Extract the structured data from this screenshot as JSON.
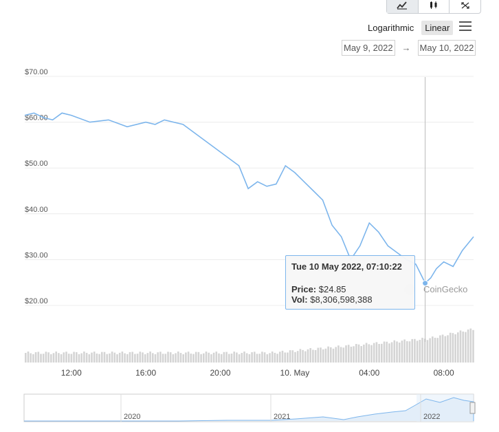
{
  "toolbar": {
    "items": [
      {
        "icon": "line-chart-icon",
        "active": true
      },
      {
        "icon": "candlestick-icon",
        "active": false
      },
      {
        "icon": "expand-icon",
        "active": false
      }
    ]
  },
  "scale": {
    "logarithmic_label": "Logarithmic",
    "linear_label": "Linear",
    "active": "Linear"
  },
  "range": {
    "from": "May 9, 2022",
    "arrow": "→",
    "to": "May 10, 2022"
  },
  "watermark": "CoinGecko",
  "tooltip": {
    "date": "Tue 10 May 2022, 07:10:22",
    "price_label": "Price:",
    "price_value": "$24.85",
    "vol_label": "Vol:",
    "vol_value": "$8,306,598,388"
  },
  "chart_data": {
    "type": "line",
    "title": "",
    "xlabel": "",
    "ylabel": "",
    "y_ticks": [
      "$20.00",
      "$30.00",
      "$40.00",
      "$50.00",
      "$60.00",
      "$70.00"
    ],
    "y_tick_values": [
      20,
      30,
      40,
      50,
      60,
      70
    ],
    "x_ticks": [
      "12:00",
      "16:00",
      "20:00",
      "10. May",
      "04:00",
      "08:00"
    ],
    "x_tick_hours": [
      12,
      16,
      20,
      24,
      28,
      32
    ],
    "x_range_hours": [
      9.5,
      33.6
    ],
    "ylim": [
      14,
      72
    ],
    "grid": true,
    "series": [
      {
        "x": [
          9.5,
          10.0,
          10.5,
          11.0,
          11.5,
          12.0,
          13.0,
          14.0,
          15.0,
          16.0,
          16.5,
          17.0,
          18.0,
          19.0,
          20.0,
          20.5,
          21.0,
          21.5,
          22.0,
          22.5,
          23.0,
          23.5,
          24.0,
          24.5,
          25.0,
          25.5,
          26.0,
          26.5,
          27.0,
          27.5,
          28.0,
          28.5,
          29.0,
          29.5,
          30.0,
          30.5,
          31.0,
          31.3,
          31.6,
          32.0,
          32.5,
          33.0,
          33.6
        ],
        "y": [
          61.5,
          62.0,
          61.0,
          60.5,
          62.0,
          61.5,
          60.0,
          60.5,
          59.0,
          60.0,
          59.5,
          60.5,
          59.5,
          56.5,
          53.5,
          52.0,
          50.5,
          45.5,
          47.0,
          46.0,
          46.5,
          50.5,
          49.0,
          47.0,
          45.0,
          43.0,
          37.5,
          35.0,
          30.0,
          33.0,
          38.0,
          36.0,
          33.0,
          31.5,
          30.0,
          29.0,
          24.9,
          26.0,
          28.0,
          29.5,
          28.5,
          32.0,
          35.0
        ]
      }
    ],
    "volume_note": "volume bars shown below price, rising toward the right",
    "tooltip_point": {
      "x": 31.0,
      "y": 24.85
    },
    "navigator": {
      "labels": [
        "2020",
        "2021",
        "2022"
      ]
    }
  }
}
